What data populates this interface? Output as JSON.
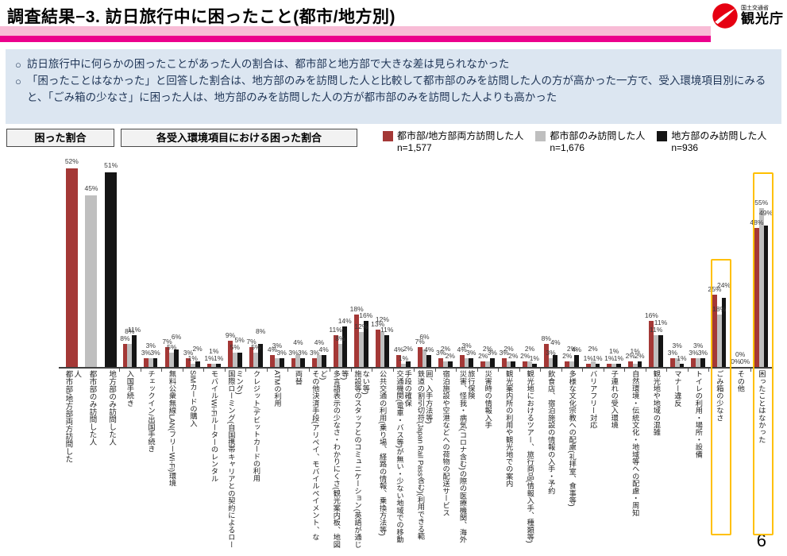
{
  "header": {
    "title": "調査結果−3. 訪日旅行中に困ったこと(都市/地方別)",
    "agency_small": "国土交通省",
    "agency": "観光庁"
  },
  "summary": {
    "bullets": [
      "訪日旅行中に何らかの困ったことがあった人の割合は、都市部と地方部で大きな差は見られなかった",
      "「困ったことはなかった」と回答した割合は、地方部のみを訪問した人と比較して都市部のみを訪問した人の方が高かった一方で、受入環境項目別にみると、「ごみ箱の少なさ」に困った人は、地方部のみを訪問した人の方が都市部のみを訪問した人よりも高かった"
    ]
  },
  "section_labels": {
    "left": "困った割合",
    "right": "各受入環境項目における困った割合"
  },
  "legend": [
    {
      "label": "都市部/地方部両方訪問した人",
      "n": "n=1,577",
      "color": "#a43836"
    },
    {
      "label": "都市部のみ訪問した人",
      "n": "n=1,676",
      "color": "#bfbfbf"
    },
    {
      "label": "地方部のみ訪問した人",
      "n": "n=936",
      "color": "#151515"
    }
  ],
  "page_number": "6",
  "colors": {
    "accent_pink": "#ec008c",
    "highlight": "#ffc000",
    "summary_bg": "#dce6f1",
    "logo_red": "#e60012"
  },
  "chart_data": [
    {
      "type": "bar",
      "title": "困った割合",
      "unit": "%",
      "categories": [
        "都市部/地方部両方訪問した人",
        "都市部のみ訪問した人",
        "地方部のみ訪問した人"
      ],
      "values": [
        52,
        45,
        51
      ],
      "colors": [
        "#a43836",
        "#bfbfbf",
        "#151515"
      ],
      "ylim": [
        0,
        55
      ],
      "grid": false
    },
    {
      "type": "bar",
      "title": "各受入環境項目における困った割合",
      "unit": "%",
      "legend_position": "top-right",
      "grid": false,
      "ylim": [
        0,
        60
      ],
      "categories": [
        "入国手続き",
        "チェックイン/出国手続き",
        "無料公衆無線LAN(フリーWi-Fi)環境",
        "SIMカードの購入",
        "モバイルWi-Fiルーターのレンタル",
        "国際ローミング(自国携帯キャリアとの契約によるローミング)",
        "クレジット/デビットカードの利用",
        "ATMの利用",
        "両替",
        "その他決済手段(アリペイ、モバイルペイメント、など)",
        "多言語表示の少なさ・わかりにくさ(観光案内板、地図等)",
        "施設等のスタッフとのコミュニケーション(英語が通じない等)",
        "公共交通の利用(乗り場、経路の情報、乗換方法等)",
        "交通機関(電車・バス等)が無い・少ない地域での移動手段の確保",
        "鉄道の割引切符(Japan Rail Pass含む)(利用できる範囲、入手方法等)",
        "宿泊施設や空港などへの荷物の配送サービス",
        "災害、怪我・病気(コロナ含む)の際の医療機関、海外旅行保険",
        "災害時の情報入手",
        "観光案内所の利用や観光地での案内",
        "観光地におけるツアー、旅行商品(情報入手、種類等)",
        "飲食店、宿泊施設の情報の入手・予約",
        "多様な文化宗教への配慮(礼拝室、食事等)",
        "バリアフリー対応",
        "子連れの受入環境",
        "自然環境・伝統文化・地域等への配慮・周知",
        "観光地や地域の混雑",
        "マナー違反",
        "トイレの利用・場所・設備",
        "ごみ箱の少なさ",
        "その他",
        "困ったことはなかった"
      ],
      "series": [
        {
          "name": "都市部/地方部両方訪問した人 n=1,577",
          "color": "#a43836",
          "values": [
            8,
            3,
            7,
            3,
            1,
            9,
            7,
            4,
            3,
            3,
            11,
            18,
            13,
            4,
            7,
            3,
            4,
            2,
            3,
            2,
            8,
            2,
            1,
            1,
            2,
            16,
            3,
            3,
            25,
            0,
            48
          ]
        },
        {
          "name": "都市部のみ訪問した人 n=1,676",
          "color": "#bfbfbf",
          "values": [
            8,
            3,
            5,
            1,
            1,
            5,
            5,
            3,
            4,
            4,
            8,
            12,
            12,
            1,
            6,
            2,
            3,
            2,
            2,
            2,
            3,
            2,
            2,
            1,
            1,
            11,
            3,
            3,
            18,
            0,
            55
          ]
        },
        {
          "name": "地方部のみ訪問した人 n=936",
          "color": "#151515",
          "values": [
            11,
            3,
            6,
            2,
            1,
            5,
            8,
            3,
            3,
            4,
            14,
            16,
            11,
            2,
            4,
            2,
            3,
            3,
            2,
            1,
            4,
            4,
            1,
            1,
            2,
            11,
            1,
            3,
            24,
            0,
            49
          ]
        }
      ],
      "highlighted_categories": [
        "ごみ箱の少なさ",
        "困ったことはなかった"
      ]
    }
  ]
}
